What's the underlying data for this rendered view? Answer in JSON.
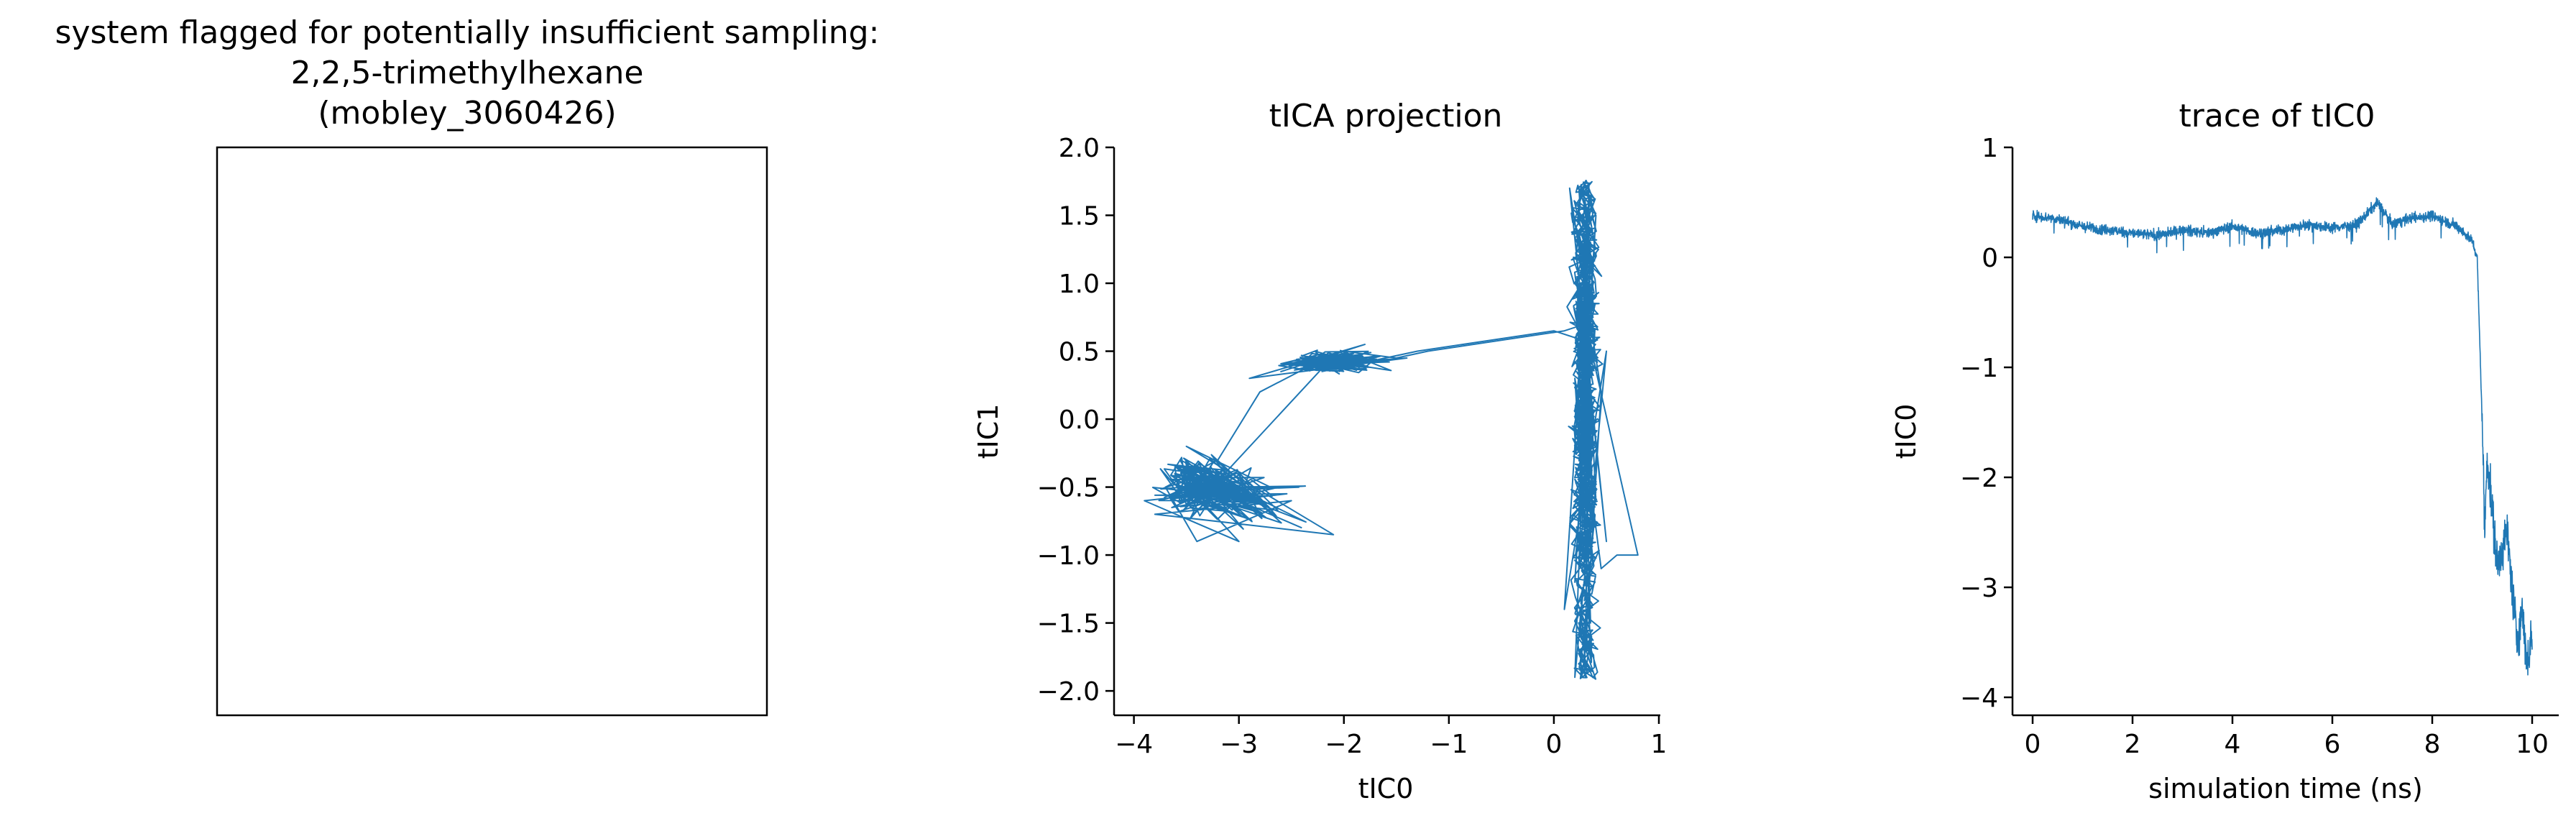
{
  "chart_data": [
    {
      "type": "image-placeholder",
      "title_lines": [
        "system flagged for potentially insufficient sampling:",
        "2,2,5-trimethylhexane",
        "(mobley_3060426)"
      ]
    },
    {
      "type": "line",
      "title": "tICA projection",
      "xlabel": "tIC0",
      "ylabel": "tIC1",
      "xlim": [
        -4.1,
        1.0
      ],
      "ylim": [
        -2.1,
        2.0
      ],
      "xticks": [
        -4,
        -3,
        -2,
        -1,
        0,
        1
      ],
      "xtick_labels": [
        "−4",
        "−3",
        "−2",
        "−1",
        "0",
        "1"
      ],
      "yticks": [
        2.0,
        1.5,
        1.0,
        0.5,
        0.0,
        -0.5,
        -1.0,
        -1.5,
        -2.0
      ],
      "ytick_labels": [
        "2.0",
        "1.5",
        "1.0",
        "0.5",
        "0.0",
        "−0.5",
        "−1.0",
        "−1.5",
        "−2.0"
      ],
      "color": "#1f77b4",
      "clusters": [
        {
          "name": "vertical band",
          "x_center": 0.3,
          "x_range": [
            -0.1,
            0.8
          ],
          "y_range": [
            -1.95,
            1.8
          ]
        },
        {
          "name": "upper-left band",
          "x_range": [
            -3.0,
            -1.2
          ],
          "y_range": [
            0.25,
            0.65
          ]
        },
        {
          "name": "lower-left cluster",
          "x_range": [
            -3.9,
            -2.0
          ],
          "y_range": [
            -1.0,
            0.0
          ]
        }
      ],
      "series": [
        {
          "values": [
            [
              0.3,
              1.2
            ],
            [
              0.25,
              -0.4
            ],
            [
              0.4,
              1.5
            ],
            [
              0.2,
              -1.2
            ],
            [
              0.35,
              0.6
            ],
            [
              0.3,
              -1.7
            ],
            [
              0.45,
              0.2
            ],
            [
              0.15,
              1.7
            ],
            [
              0.5,
              -0.9
            ],
            [
              0.25,
              0.9
            ],
            [
              0.35,
              -1.5
            ],
            [
              0.2,
              0.3
            ],
            [
              0.4,
              -0.6
            ],
            [
              0.3,
              1.0
            ],
            [
              0.1,
              -1.4
            ],
            [
              0.5,
              0.5
            ],
            [
              0.2,
              -1.9
            ],
            [
              0.35,
              1.3
            ],
            [
              0.3,
              -0.2
            ],
            [
              0.45,
              -1.1
            ],
            [
              0.6,
              -1.0
            ],
            [
              0.8,
              -1.0
            ],
            [
              0.3,
              0.7
            ],
            [
              0.1,
              0.65
            ],
            [
              -1.2,
              0.5
            ],
            [
              -1.5,
              0.45
            ],
            [
              -2.0,
              0.5
            ],
            [
              -2.6,
              0.35
            ],
            [
              -1.8,
              0.55
            ],
            [
              -2.9,
              0.3
            ],
            [
              -1.4,
              0.45
            ],
            [
              -2.3,
              0.4
            ],
            [
              -2.8,
              0.2
            ],
            [
              -3.2,
              -0.3
            ],
            [
              -3.7,
              -0.5
            ],
            [
              -3.4,
              -0.9
            ],
            [
              -2.5,
              -0.6
            ],
            [
              -3.8,
              -0.7
            ],
            [
              -2.1,
              -0.85
            ],
            [
              -3.5,
              -0.2
            ],
            [
              -2.7,
              -0.5
            ],
            [
              -3.9,
              -0.6
            ],
            [
              -3.0,
              -0.9
            ],
            [
              -3.6,
              -0.4
            ],
            [
              -2.4,
              -0.8
            ]
          ]
        }
      ]
    },
    {
      "type": "line",
      "title": "trace of tIC0",
      "xlabel": "simulation time (ns)",
      "ylabel": "tIC0",
      "xlim": [
        -0.3,
        10.3
      ],
      "ylim": [
        -4.15,
        1.0
      ],
      "xticks": [
        0,
        2,
        4,
        6,
        8,
        10
      ],
      "xtick_labels": [
        "0",
        "2",
        "4",
        "6",
        "8",
        "10"
      ],
      "yticks": [
        1,
        0,
        -1,
        -2,
        -3,
        -4
      ],
      "ytick_labels": [
        "1",
        "0",
        "−1",
        "−2",
        "−3",
        "−4"
      ],
      "color": "#1f77b4",
      "series": [
        {
          "values": [
            [
              0.0,
              0.38
            ],
            [
              0.5,
              0.35
            ],
            [
              1.0,
              0.28
            ],
            [
              1.5,
              0.25
            ],
            [
              2.0,
              0.22
            ],
            [
              2.5,
              0.2
            ],
            [
              3.0,
              0.25
            ],
            [
              3.5,
              0.22
            ],
            [
              4.0,
              0.28
            ],
            [
              4.5,
              0.22
            ],
            [
              5.0,
              0.25
            ],
            [
              5.5,
              0.3
            ],
            [
              6.0,
              0.27
            ],
            [
              6.5,
              0.3
            ],
            [
              6.9,
              0.5
            ],
            [
              7.2,
              0.3
            ],
            [
              7.5,
              0.35
            ],
            [
              8.0,
              0.38
            ],
            [
              8.5,
              0.28
            ],
            [
              8.8,
              0.15
            ],
            [
              8.9,
              0.0
            ],
            [
              9.0,
              -1.5
            ],
            [
              9.05,
              -2.5
            ],
            [
              9.1,
              -1.8
            ],
            [
              9.3,
              -2.8
            ],
            [
              9.5,
              -2.5
            ],
            [
              9.6,
              -3.0
            ],
            [
              9.7,
              -3.5
            ],
            [
              9.8,
              -3.2
            ],
            [
              9.9,
              -3.7
            ],
            [
              10.0,
              -3.4
            ]
          ]
        }
      ]
    }
  ]
}
